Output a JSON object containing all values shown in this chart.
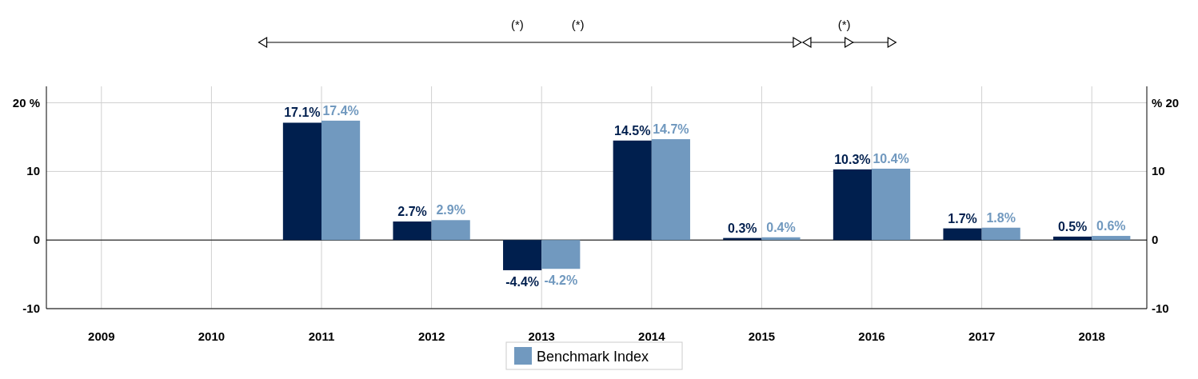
{
  "chart_data": {
    "type": "bar",
    "categories": [
      "2009",
      "2010",
      "2011",
      "2012",
      "2013",
      "2014",
      "2015",
      "2016",
      "2017",
      "2018"
    ],
    "series": [
      {
        "color": "#001f4e",
        "values": [
          null,
          null,
          17.1,
          2.7,
          -4.4,
          14.5,
          0.3,
          10.3,
          1.7,
          0.5
        ],
        "value_labels": [
          null,
          null,
          "17.1%",
          "2.7%",
          "-4.4%",
          "14.5%",
          "0.3%",
          "10.3%",
          "1.7%",
          "0.5%"
        ]
      },
      {
        "name": "Benchmark Index",
        "color": "#7199bf",
        "values": [
          null,
          null,
          17.4,
          2.9,
          -4.2,
          14.7,
          0.4,
          10.4,
          1.8,
          0.6
        ],
        "value_labels": [
          null,
          null,
          "17.4%",
          "2.9%",
          "-4.2%",
          "14.7%",
          "0.4%",
          "10.4%",
          "1.8%",
          "0.6%"
        ]
      }
    ],
    "ylim": [
      -10,
      22.4
    ],
    "yticks": [
      -10,
      0,
      10,
      {
        "value": 20,
        "label": "20 %"
      }
    ],
    "y2lim": [
      -10,
      22.4
    ],
    "y2ticks": [
      -10,
      0,
      10,
      {
        "value": 20,
        "label": "% 20"
      }
    ],
    "grid": true,
    "legend": "bottom",
    "annotations": [
      "(*)",
      "(*)",
      "(*)"
    ]
  }
}
